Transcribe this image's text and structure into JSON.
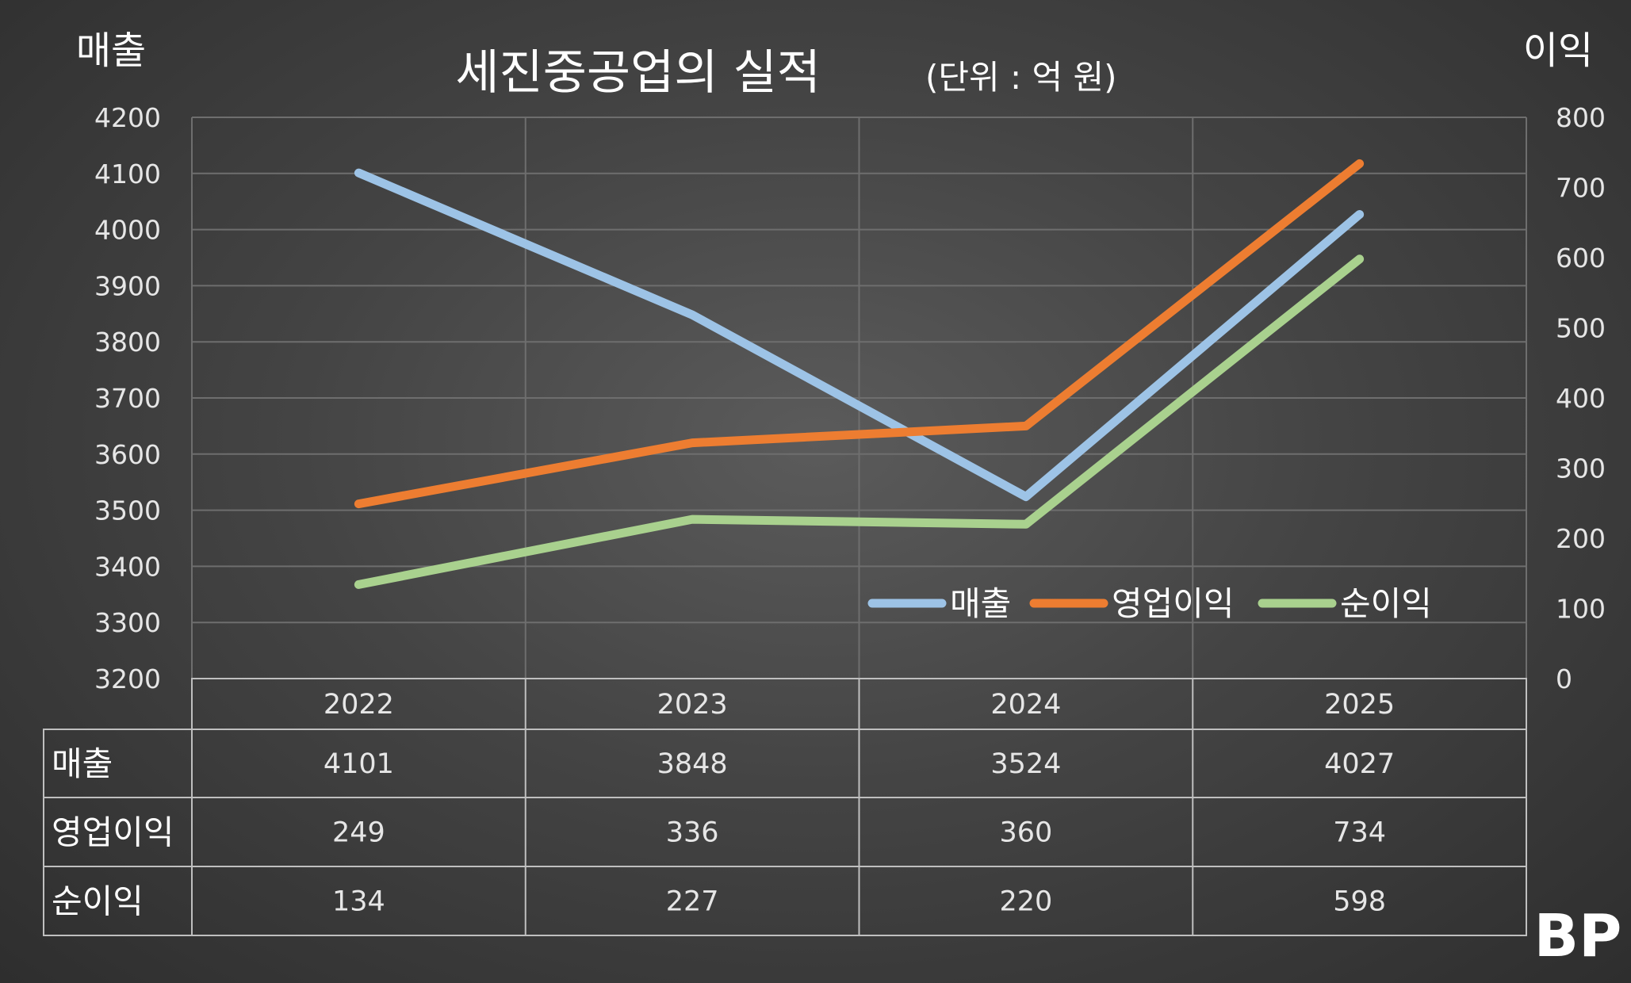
{
  "title": "세진중공업의 실적",
  "title_unit": "(단위 : 억 원)",
  "left_axis_title": "매출",
  "right_axis_title": "이익",
  "logo_text": "BP",
  "colors": {
    "매출": "#9dc3e6",
    "영업이익": "#ed7d31",
    "순이익": "#a9d18e",
    "text": "#ffffff",
    "tick_text": "#e6e6e6",
    "grid": "#6e6e6e",
    "table_border": "#bfbfbf"
  },
  "chart_data": {
    "type": "line",
    "title": "세진중공업의 실적(단위 : 억 원)",
    "categories": [
      "2022",
      "2023",
      "2024",
      "2025"
    ],
    "series": [
      {
        "name": "매출",
        "axis": "left",
        "values": [
          4101,
          3848,
          3524,
          4027
        ]
      },
      {
        "name": "영업이익",
        "axis": "right",
        "values": [
          249,
          336,
          360,
          734
        ]
      },
      {
        "name": "순이익",
        "axis": "right",
        "values": [
          134,
          227,
          220,
          598
        ]
      }
    ],
    "y_left": {
      "label": "매출",
      "min": 3200,
      "max": 4200,
      "step": 100,
      "ticks": [
        "4200",
        "4100",
        "4000",
        "3900",
        "3800",
        "3700",
        "3600",
        "3500",
        "3400",
        "3300",
        "3200"
      ]
    },
    "y_right": {
      "label": "이익",
      "min": 0,
      "max": 800,
      "step": 100,
      "ticks": [
        "800",
        "700",
        "600",
        "500",
        "400",
        "300",
        "200",
        "100",
        "0"
      ]
    },
    "grid": true,
    "legend_position": "inside-lower-right",
    "data_table": {
      "rows": [
        {
          "label": "매출",
          "values": [
            "4101",
            "3848",
            "3524",
            "4027"
          ]
        },
        {
          "label": "영업이익",
          "values": [
            "249",
            "336",
            "360",
            "734"
          ]
        },
        {
          "label": "순이익",
          "values": [
            "134",
            "227",
            "220",
            "598"
          ]
        }
      ]
    }
  }
}
